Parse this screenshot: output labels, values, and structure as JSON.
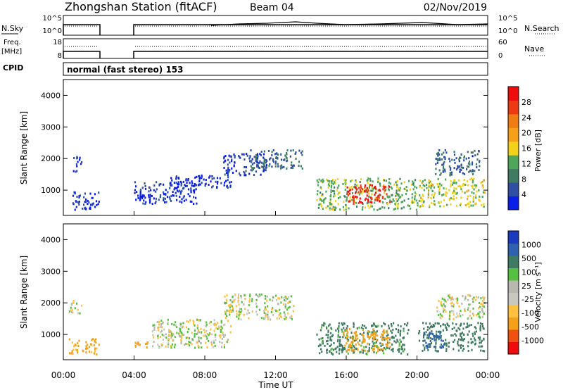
{
  "header": {
    "station": "Zhongshan Station (fitACF)",
    "beam": "Beam 04",
    "date": "02/Nov/2019"
  },
  "panel_labels": {
    "nsky": "N.Sky",
    "nsearch": "N.Search",
    "freq_line1": "Freq.",
    "freq_line2": "[MHz]",
    "nave": "Nave",
    "cpid": "CPID",
    "cpid_value": "normal (fast stereo) 153"
  },
  "noise_axis": {
    "left_ticks": [
      "10^5",
      "10^0"
    ],
    "right_ticks": [
      "10^5",
      "10^0"
    ]
  },
  "freq_axis": {
    "left_ticks": [
      "18",
      "8"
    ],
    "right_ticks": [
      "60",
      "0"
    ]
  },
  "colors": {
    "power_scale": [
      "#0a1eea",
      "#2f4fa4",
      "#3f7a62",
      "#4ea65a",
      "#f2d11a",
      "#f4a018",
      "#f07c14",
      "#ee3a14",
      "#ee0c0c"
    ],
    "velocity_scale": [
      "#ee0c0c",
      "#f05010",
      "#f4a018",
      "#ffc040",
      "#c8c8c0",
      "#b8b8b0",
      "#56c040",
      "#3f7a62",
      "#2e62b0",
      "#1a3ac0"
    ]
  },
  "chart_data": [
    {
      "type": "heatmap",
      "name": "power",
      "ylabel": "Slant Range [km]",
      "y_ticks": [
        "1000",
        "2000",
        "3000",
        "4000"
      ],
      "ylim": [
        200,
        4500
      ],
      "xlim": [
        0,
        24
      ],
      "colorbar_label": "Power [dB]",
      "colorbar_ticks": [
        "4",
        "8",
        "12",
        "16",
        "20",
        "24",
        "28"
      ],
      "scatter_regions": [
        {
          "t0": 0.5,
          "t1": 2.0,
          "r0": 400,
          "r1": 1000,
          "value": 5
        },
        {
          "t0": 0.5,
          "t1": 1.0,
          "r0": 1600,
          "r1": 2100,
          "value": 5
        },
        {
          "t0": 4.0,
          "t1": 7.5,
          "r0": 600,
          "r1": 1300,
          "value": 5
        },
        {
          "t0": 6.0,
          "t1": 9.5,
          "r0": 1100,
          "r1": 1500,
          "value": 4
        },
        {
          "t0": 9.0,
          "t1": 11.5,
          "r0": 1500,
          "r1": 2200,
          "value": 6
        },
        {
          "t0": 10.5,
          "t1": 13.5,
          "r0": 1700,
          "r1": 2300,
          "value": 9
        },
        {
          "t0": 14.3,
          "t1": 20.0,
          "r0": 400,
          "r1": 1400,
          "value": 14
        },
        {
          "t0": 16.0,
          "t1": 18.5,
          "r0": 600,
          "r1": 1200,
          "value": 28
        },
        {
          "t0": 20.0,
          "t1": 23.8,
          "r0": 500,
          "r1": 1400,
          "value": 16
        },
        {
          "t0": 21.0,
          "t1": 23.5,
          "r0": 1500,
          "r1": 2300,
          "value": 8
        }
      ]
    },
    {
      "type": "heatmap",
      "name": "velocity",
      "ylabel": "Slant Range [km]",
      "y_ticks": [
        "1000",
        "2000",
        "3000",
        "4000"
      ],
      "ylim": [
        200,
        4500
      ],
      "xlim": [
        0,
        24
      ],
      "colorbar_label": "Velocity [m s⁻¹]",
      "colorbar_ticks": [
        "1000",
        "500",
        "100",
        "25",
        "-25",
        "-100",
        "-500",
        "-1000"
      ],
      "x_ticks": [
        "00:00",
        "04:00",
        "08:00",
        "12:00",
        "16:00",
        "20:00",
        "00:00"
      ],
      "xlabel": "Time UT",
      "scatter_regions": [
        {
          "t0": 0.3,
          "t1": 2.0,
          "r0": 400,
          "r1": 900,
          "value": -150
        },
        {
          "t0": 0.3,
          "t1": 1.0,
          "r0": 1700,
          "r1": 2100,
          "value": 10
        },
        {
          "t0": 4.0,
          "t1": 4.8,
          "r0": 600,
          "r1": 900,
          "value": -300
        },
        {
          "t0": 5.0,
          "t1": 9.5,
          "r0": 600,
          "r1": 1500,
          "value": 10
        },
        {
          "t0": 9.0,
          "t1": 13.0,
          "r0": 1500,
          "r1": 2300,
          "value": 5
        },
        {
          "t0": 14.3,
          "t1": 19.5,
          "r0": 400,
          "r1": 1400,
          "value": 150
        },
        {
          "t0": 15.8,
          "t1": 18.5,
          "r0": 500,
          "r1": 1200,
          "value": -300
        },
        {
          "t0": 20.0,
          "t1": 23.8,
          "r0": 500,
          "r1": 1400,
          "value": 200
        },
        {
          "t0": 20.3,
          "t1": 21.5,
          "r0": 600,
          "r1": 1100,
          "value": 800
        },
        {
          "t0": 21.0,
          "t1": 23.8,
          "r0": 1500,
          "r1": 2300,
          "value": 0
        }
      ]
    }
  ]
}
